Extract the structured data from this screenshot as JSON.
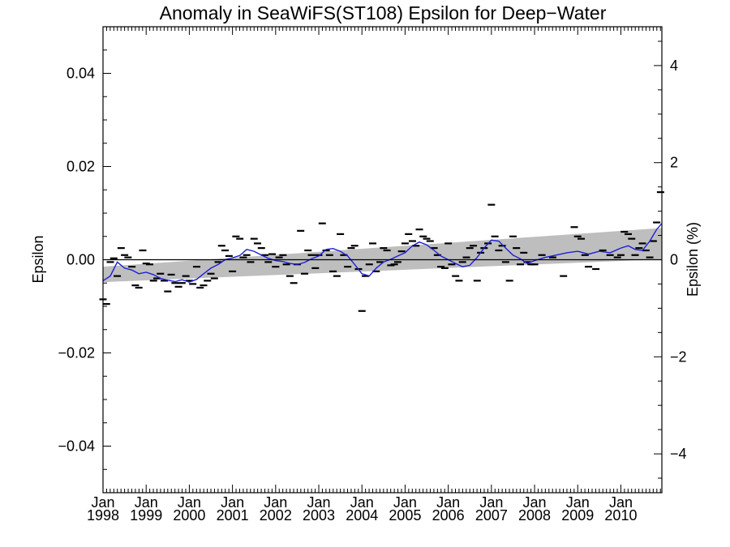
{
  "chart_data": {
    "type": "line",
    "title": "Anomaly in SeaWiFS(ST108) Epsilon for Deep−Water",
    "ylabel": "Epsilon",
    "ylabel_right": "Epsilon (%)",
    "xlabel": "",
    "xlim": [
      1998.0,
      2010.95
    ],
    "ylim": [
      -0.05,
      0.05
    ],
    "ylim_right": [
      -4.8,
      4.8
    ],
    "x_ticks": [
      {
        "x": 1998,
        "month": "Jan",
        "year": "1998"
      },
      {
        "x": 1999,
        "month": "Jan",
        "year": "1999"
      },
      {
        "x": 2000,
        "month": "Jan",
        "year": "2000"
      },
      {
        "x": 2001,
        "month": "Jan",
        "year": "2001"
      },
      {
        "x": 2002,
        "month": "Jan",
        "year": "2002"
      },
      {
        "x": 2003,
        "month": "Jan",
        "year": "2003"
      },
      {
        "x": 2004,
        "month": "Jan",
        "year": "2004"
      },
      {
        "x": 2005,
        "month": "Jan",
        "year": "2005"
      },
      {
        "x": 2006,
        "month": "Jan",
        "year": "2006"
      },
      {
        "x": 2007,
        "month": "Jan",
        "year": "2007"
      },
      {
        "x": 2008,
        "month": "Jan",
        "year": "2008"
      },
      {
        "x": 2009,
        "month": "Jan",
        "year": "2009"
      },
      {
        "x": 2010,
        "month": "Jan",
        "year": "2010"
      }
    ],
    "y_ticks_left": [
      {
        "v": 0.04,
        "label": "0.04"
      },
      {
        "v": 0.02,
        "label": "0.02"
      },
      {
        "v": 0.0,
        "label": "0.00"
      },
      {
        "v": -0.02,
        "label": "−0.02"
      },
      {
        "v": -0.04,
        "label": "−0.04"
      }
    ],
    "y_ticks_right": [
      {
        "v": 4,
        "label": "4"
      },
      {
        "v": 2,
        "label": "2"
      },
      {
        "v": 0,
        "label": "0"
      },
      {
        "v": -2,
        "label": "−2"
      },
      {
        "v": -4,
        "label": "−4"
      }
    ],
    "zero_line": true,
    "trend_band": {
      "x": [
        1998.0,
        2010.95
      ],
      "upper": [
        -0.0015,
        0.0068
      ],
      "lower": [
        -0.0048,
        0.0001
      ]
    },
    "series": [
      {
        "type": "line",
        "color": "#1f1fd6",
        "x": [
          1998.0,
          1998.17,
          1998.33,
          1998.5,
          1998.67,
          1998.83,
          1999.0,
          1999.17,
          1999.33,
          1999.5,
          1999.67,
          1999.83,
          2000.0,
          2000.17,
          2000.33,
          2000.5,
          2000.67,
          2000.83,
          2001.0,
          2001.17,
          2001.33,
          2001.5,
          2001.67,
          2001.83,
          2002.0,
          2002.17,
          2002.33,
          2002.5,
          2002.67,
          2002.83,
          2003.0,
          2003.17,
          2003.33,
          2003.5,
          2003.67,
          2003.83,
          2004.0,
          2004.17,
          2004.33,
          2004.5,
          2004.67,
          2004.83,
          2005.0,
          2005.17,
          2005.33,
          2005.5,
          2005.67,
          2005.83,
          2006.0,
          2006.17,
          2006.33,
          2006.5,
          2006.67,
          2006.83,
          2007.0,
          2007.17,
          2007.33,
          2007.5,
          2007.67,
          2007.83,
          2008.0,
          2008.25,
          2008.5,
          2008.75,
          2009.0,
          2009.25,
          2009.5,
          2009.75,
          2010.0,
          2010.17,
          2010.33,
          2010.5,
          2010.67,
          2010.83,
          2010.95
        ],
        "values": [
          -0.0045,
          -0.0035,
          -0.0005,
          -0.0018,
          -0.0022,
          -0.003,
          -0.0027,
          -0.0032,
          -0.004,
          -0.0044,
          -0.0047,
          -0.0043,
          -0.0048,
          -0.0042,
          -0.003,
          -0.0018,
          -0.001,
          0.0,
          0.0004,
          0.0009,
          0.0022,
          0.0018,
          0.001,
          0.0003,
          -0.0002,
          -0.0004,
          -0.0008,
          -0.001,
          -0.0006,
          0.0002,
          0.0008,
          0.0022,
          0.0024,
          0.0018,
          0.0008,
          -0.001,
          -0.003,
          -0.0035,
          -0.0018,
          -0.0005,
          0.0001,
          0.0008,
          0.0015,
          0.003,
          0.0038,
          0.0032,
          0.002,
          0.0008,
          0.0,
          -0.0008,
          -0.0015,
          -0.0012,
          0.0005,
          0.0025,
          0.0042,
          0.004,
          0.0025,
          0.001,
          0.0002,
          -0.0008,
          -0.0002,
          0.0005,
          0.001,
          0.0015,
          0.0018,
          0.0012,
          0.0018,
          0.0015,
          0.0025,
          0.003,
          0.0022,
          0.002,
          0.004,
          0.0065,
          0.0078
        ]
      },
      {
        "type": "markers",
        "marker": "dash",
        "color": "#000000",
        "x": [
          1998.0,
          1998.08,
          1998.17,
          1998.25,
          1998.33,
          1998.42,
          1998.5,
          1998.58,
          1998.67,
          1998.75,
          1998.83,
          1998.92,
          1999.0,
          1999.08,
          1999.17,
          1999.25,
          1999.33,
          1999.42,
          1999.5,
          1999.58,
          1999.67,
          1999.75,
          1999.83,
          1999.92,
          2000.0,
          2000.08,
          2000.17,
          2000.25,
          2000.33,
          2000.42,
          2000.5,
          2000.58,
          2000.67,
          2000.75,
          2000.83,
          2000.92,
          2001.0,
          2001.08,
          2001.17,
          2001.25,
          2001.33,
          2001.42,
          2001.5,
          2001.58,
          2001.67,
          2001.75,
          2001.83,
          2001.92,
          2002.0,
          2002.08,
          2002.17,
          2002.25,
          2002.33,
          2002.42,
          2002.5,
          2002.58,
          2002.67,
          2002.75,
          2002.83,
          2002.92,
          2003.0,
          2003.08,
          2003.17,
          2003.25,
          2003.33,
          2003.42,
          2003.5,
          2003.58,
          2003.67,
          2003.75,
          2003.83,
          2003.92,
          2004.0,
          2004.08,
          2004.17,
          2004.25,
          2004.33,
          2004.42,
          2004.5,
          2004.58,
          2004.67,
          2004.75,
          2004.83,
          2004.92,
          2005.0,
          2005.08,
          2005.17,
          2005.25,
          2005.33,
          2005.42,
          2005.5,
          2005.58,
          2005.67,
          2005.75,
          2005.83,
          2005.92,
          2006.0,
          2006.08,
          2006.17,
          2006.25,
          2006.33,
          2006.42,
          2006.5,
          2006.58,
          2006.67,
          2006.75,
          2006.83,
          2006.92,
          2007.0,
          2007.08,
          2007.17,
          2007.25,
          2007.33,
          2007.42,
          2007.5,
          2007.58,
          2007.67,
          2007.75,
          2007.83,
          2007.92,
          2008.0,
          2008.17,
          2008.42,
          2008.67,
          2008.92,
          2009.0,
          2009.08,
          2009.17,
          2009.25,
          2009.42,
          2009.58,
          2009.75,
          2009.92,
          2010.0,
          2010.08,
          2010.17,
          2010.25,
          2010.33,
          2010.42,
          2010.5,
          2010.58,
          2010.67,
          2010.75,
          2010.83,
          2010.92
        ],
        "values": [
          -0.0085,
          -0.0095,
          -0.0005,
          0.0003,
          -0.0035,
          0.0025,
          0.001,
          0.0005,
          -0.0015,
          -0.0055,
          -0.006,
          0.002,
          -0.0008,
          -0.001,
          -0.0045,
          -0.004,
          -0.003,
          -0.0045,
          -0.0068,
          -0.0032,
          -0.005,
          -0.0058,
          -0.005,
          -0.0035,
          -0.0045,
          -0.0052,
          -0.0015,
          -0.006,
          -0.0055,
          -0.0045,
          -0.003,
          -0.004,
          -0.0005,
          0.003,
          0.002,
          0.0008,
          -0.0025,
          0.005,
          0.0045,
          0.0005,
          0.001,
          -0.0005,
          0.0045,
          0.0035,
          0.0025,
          0.001,
          -0.0005,
          0.0012,
          -0.0015,
          0.0005,
          0.001,
          -0.001,
          -0.0035,
          -0.005,
          -0.001,
          0.0062,
          -0.003,
          0.002,
          0.001,
          -0.0018,
          0.001,
          0.0078,
          0.002,
          0.001,
          -0.0025,
          -0.0035,
          0.0055,
          0.001,
          -0.0015,
          0.0025,
          0.003,
          -0.002,
          -0.011,
          -0.0035,
          -0.001,
          0.0035,
          -0.0025,
          -0.0005,
          0.0025,
          0.002,
          -0.0012,
          -0.001,
          -0.0005,
          0.0018,
          0.0035,
          0.0055,
          0.004,
          0.003,
          0.0065,
          0.005,
          0.0045,
          0.004,
          0.0025,
          0.001,
          -0.0015,
          -0.0018,
          0.0035,
          -0.001,
          -0.0035,
          -0.0045,
          -0.0005,
          0.0005,
          0.0025,
          0.003,
          -0.0045,
          0.0015,
          0.0025,
          0.0035,
          0.0118,
          0.005,
          0.002,
          0.003,
          -0.0005,
          -0.0045,
          0.005,
          0.0025,
          -0.001,
          0.0015,
          -0.0005,
          -0.001,
          -0.001,
          0.001,
          0.0005,
          -0.0035,
          0.007,
          0.005,
          0.0045,
          0.001,
          -0.0015,
          -0.002,
          0.002,
          0.001,
          0.0005,
          0.001,
          0.006,
          0.0055,
          0.0045,
          0.001,
          0.0025,
          0.0035,
          0.002,
          0.0005,
          0.004,
          0.008,
          0.0145
        ]
      }
    ]
  }
}
